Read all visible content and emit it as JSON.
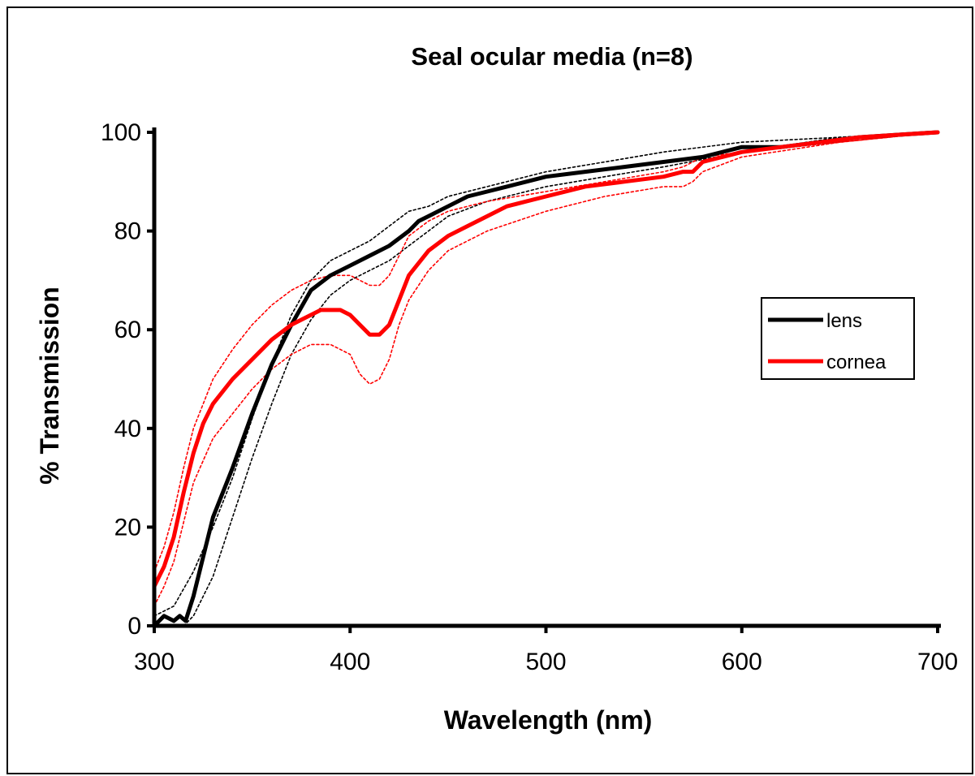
{
  "chart_data": {
    "type": "line",
    "title": "Seal ocular media (n=8)",
    "xlabel": "Wavelength (nm)",
    "ylabel": "% Transmission",
    "xlim": [
      300,
      700
    ],
    "ylim": [
      0,
      100
    ],
    "xticks": [
      300,
      400,
      500,
      600,
      700
    ],
    "yticks": [
      0,
      20,
      40,
      60,
      80,
      100
    ],
    "grid": false,
    "legend_position": "right",
    "series": [
      {
        "name": "lens",
        "color": "#000000",
        "style": "solid-thick",
        "x": [
          300,
          305,
          310,
          313,
          316,
          320,
          325,
          330,
          340,
          350,
          360,
          370,
          380,
          390,
          400,
          410,
          420,
          430,
          435,
          440,
          450,
          460,
          470,
          480,
          490,
          500,
          520,
          540,
          560,
          580,
          600,
          620,
          640,
          660,
          680,
          700
        ],
        "y": [
          0,
          2,
          1,
          2,
          1,
          6,
          14,
          22,
          32,
          43,
          53,
          61,
          68,
          71,
          73,
          75,
          77,
          80,
          82,
          83,
          85,
          87,
          88,
          89,
          90,
          91,
          92,
          93,
          94,
          95,
          97,
          97,
          98,
          99,
          99.5,
          100
        ]
      },
      {
        "name": "cornea",
        "color": "#ff0000",
        "style": "solid-thick",
        "x": [
          300,
          305,
          310,
          315,
          320,
          325,
          330,
          340,
          350,
          360,
          370,
          380,
          385,
          390,
          395,
          400,
          405,
          410,
          415,
          420,
          425,
          430,
          440,
          450,
          460,
          470,
          480,
          490,
          500,
          520,
          540,
          560,
          570,
          575,
          580,
          590,
          600,
          620,
          640,
          660,
          680,
          700
        ],
        "y": [
          8,
          12,
          18,
          27,
          35,
          41,
          45,
          50,
          54,
          58,
          61,
          63,
          64,
          64,
          64,
          63,
          61,
          59,
          59,
          61,
          66,
          71,
          76,
          79,
          81,
          83,
          85,
          86,
          87,
          89,
          90,
          91,
          92,
          92,
          94,
          95,
          96,
          97,
          98,
          99,
          99.5,
          100
        ]
      },
      {
        "color": "#000000",
        "style": "dotted-upper",
        "x": [
          300,
          305,
          310,
          320,
          330,
          340,
          350,
          360,
          370,
          380,
          390,
          400,
          410,
          420,
          430,
          440,
          450,
          470,
          500,
          530,
          560,
          600,
          650,
          700
        ],
        "y": [
          2,
          3,
          4,
          11,
          20,
          30,
          42,
          53,
          63,
          70,
          74,
          76,
          78,
          81,
          84,
          85,
          87,
          89,
          92,
          94,
          96,
          98,
          99,
          100
        ]
      },
      {
        "color": "#000000",
        "style": "dotted-lower",
        "x": [
          300,
          305,
          310,
          315,
          320,
          330,
          340,
          350,
          360,
          370,
          380,
          390,
          400,
          410,
          420,
          430,
          440,
          450,
          470,
          500,
          530,
          560,
          600,
          650,
          700
        ],
        "y": [
          0,
          0,
          0,
          0,
          2,
          10,
          22,
          34,
          45,
          55,
          62,
          67,
          70,
          72,
          74,
          77,
          80,
          83,
          86,
          89,
          91,
          93,
          96,
          99,
          100
        ]
      },
      {
        "color": "#ff0000",
        "style": "dotted-upper",
        "x": [
          300,
          305,
          310,
          315,
          320,
          330,
          340,
          350,
          360,
          370,
          380,
          390,
          395,
          400,
          410,
          415,
          420,
          425,
          430,
          440,
          450,
          470,
          500,
          530,
          560,
          570,
          580,
          600,
          650,
          700
        ],
        "y": [
          11,
          16,
          23,
          32,
          40,
          50,
          56,
          61,
          65,
          68,
          70,
          71,
          71,
          71,
          69,
          69,
          71,
          75,
          79,
          82,
          84,
          86,
          88,
          90,
          92,
          93,
          95,
          96,
          98,
          100
        ]
      },
      {
        "color": "#ff0000",
        "style": "dotted-lower",
        "x": [
          300,
          305,
          310,
          315,
          320,
          330,
          340,
          350,
          360,
          370,
          380,
          390,
          400,
          405,
          410,
          415,
          420,
          425,
          430,
          440,
          450,
          470,
          500,
          530,
          560,
          570,
          575,
          580,
          600,
          650,
          700
        ],
        "y": [
          4,
          8,
          13,
          21,
          29,
          38,
          43,
          48,
          52,
          55,
          57,
          57,
          55,
          51,
          49,
          50,
          54,
          61,
          66,
          72,
          76,
          80,
          84,
          87,
          89,
          89,
          90,
          92,
          95,
          98,
          100
        ]
      }
    ]
  }
}
